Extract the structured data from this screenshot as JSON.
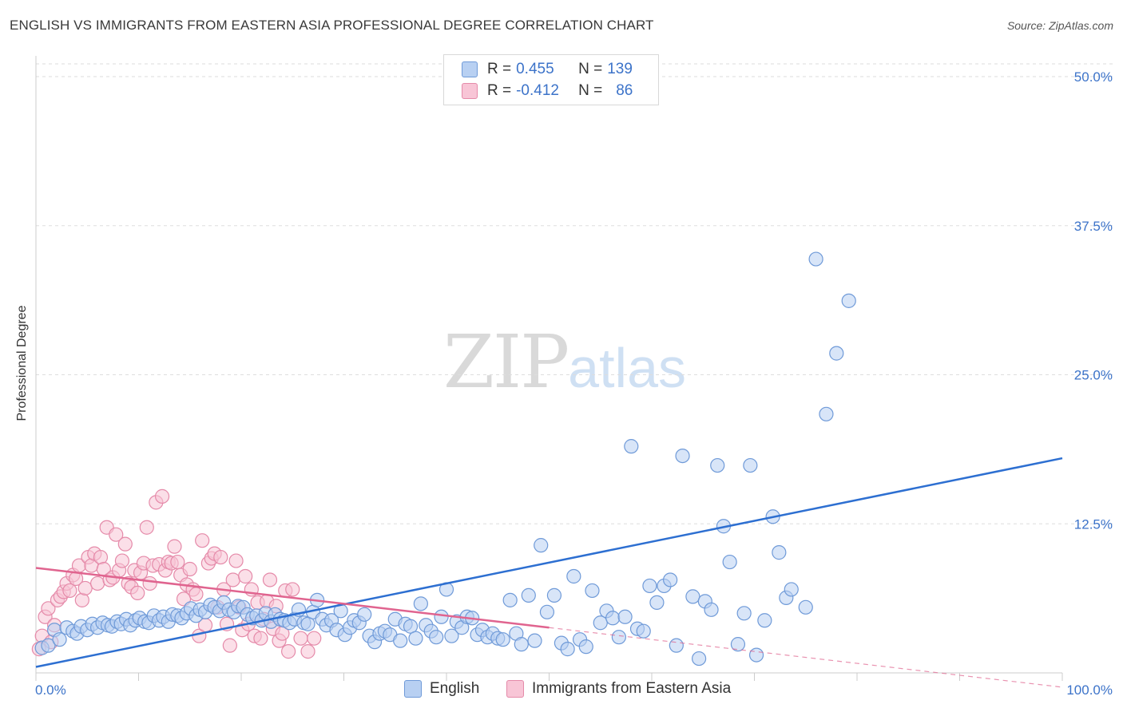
{
  "header": {
    "title": "ENGLISH VS IMMIGRANTS FROM EASTERN ASIA PROFESSIONAL DEGREE CORRELATION CHART",
    "source": "Source: ZipAtlas.com"
  },
  "watermark": {
    "part1": "ZIP",
    "part2": "atlas"
  },
  "legend_top": {
    "rows": [
      {
        "r_label": "R = ",
        "r_value": "0.455",
        "n_label": "N = ",
        "n_value": "139"
      },
      {
        "r_label": "R = ",
        "r_value": "-0.412",
        "n_label": "N = ",
        "n_value": "86"
      }
    ]
  },
  "legend_bottom": {
    "items": [
      {
        "label": "English"
      },
      {
        "label": "Immigrants from Eastern Asia"
      }
    ]
  },
  "colors": {
    "english_fill": "#b8d0f2",
    "english_stroke": "#6f9ad8",
    "english_line": "#2d6fd1",
    "immig_fill": "#f8c5d6",
    "immig_stroke": "#e58aa9",
    "immig_line": "#e0648f",
    "tick_label": "#3c73c9",
    "grid": "#dddddd"
  },
  "chart_data": {
    "type": "scatter",
    "title": "ENGLISH VS IMMIGRANTS FROM EASTERN ASIA PROFESSIONAL DEGREE CORRELATION CHART",
    "xlabel": "",
    "ylabel": "Professional Degree",
    "xlim": [
      0,
      100
    ],
    "ylim": [
      0,
      52
    ],
    "x_tick_labels": [
      {
        "value": 0,
        "label": "0.0%"
      },
      {
        "value": 100,
        "label": "100.0%"
      }
    ],
    "y_tick_labels": [
      {
        "value": 12.5,
        "label": "12.5%"
      },
      {
        "value": 25,
        "label": "25.0%"
      },
      {
        "value": 37.5,
        "label": "37.5%"
      },
      {
        "value": 50,
        "label": "50.0%"
      }
    ],
    "grid": true,
    "legend_position": "top-center",
    "series": [
      {
        "name": "English",
        "R": 0.455,
        "N": 139,
        "trend": {
          "x": [
            0,
            100
          ],
          "y": [
            0.5,
            18.0
          ]
        },
        "points": [
          [
            0.6,
            2.1
          ],
          [
            1.2,
            2.3
          ],
          [
            1.8,
            3.6
          ],
          [
            2.3,
            2.8
          ],
          [
            3.0,
            3.8
          ],
          [
            3.6,
            3.5
          ],
          [
            4.0,
            3.3
          ],
          [
            4.4,
            3.9
          ],
          [
            5.0,
            3.6
          ],
          [
            5.5,
            4.1
          ],
          [
            6.0,
            3.8
          ],
          [
            6.5,
            4.2
          ],
          [
            7.0,
            4.0
          ],
          [
            7.4,
            3.9
          ],
          [
            7.9,
            4.3
          ],
          [
            8.3,
            4.1
          ],
          [
            8.8,
            4.5
          ],
          [
            9.2,
            4.0
          ],
          [
            9.7,
            4.4
          ],
          [
            10.1,
            4.6
          ],
          [
            10.6,
            4.3
          ],
          [
            11.0,
            4.2
          ],
          [
            11.5,
            4.8
          ],
          [
            12.0,
            4.4
          ],
          [
            12.4,
            4.7
          ],
          [
            12.9,
            4.3
          ],
          [
            13.3,
            4.9
          ],
          [
            13.8,
            4.8
          ],
          [
            14.2,
            4.6
          ],
          [
            14.7,
            5.0
          ],
          [
            15.1,
            5.4
          ],
          [
            15.6,
            4.8
          ],
          [
            16.0,
            5.3
          ],
          [
            16.5,
            5.1
          ],
          [
            17.0,
            5.7
          ],
          [
            17.4,
            5.5
          ],
          [
            17.9,
            5.2
          ],
          [
            18.3,
            5.9
          ],
          [
            18.8,
            5.3
          ],
          [
            19.3,
            5.1
          ],
          [
            19.7,
            5.6
          ],
          [
            20.2,
            5.5
          ],
          [
            20.6,
            4.9
          ],
          [
            21.1,
            4.6
          ],
          [
            21.5,
            4.8
          ],
          [
            22.0,
            4.4
          ],
          [
            22.4,
            5.0
          ],
          [
            22.9,
            4.3
          ],
          [
            23.3,
            4.9
          ],
          [
            23.8,
            4.5
          ],
          [
            24.2,
            4.4
          ],
          [
            24.7,
            4.2
          ],
          [
            25.2,
            4.5
          ],
          [
            25.6,
            5.3
          ],
          [
            26.1,
            4.2
          ],
          [
            26.5,
            4.1
          ],
          [
            27.0,
            5.1
          ],
          [
            27.4,
            6.1
          ],
          [
            27.9,
            4.5
          ],
          [
            28.3,
            4.0
          ],
          [
            28.8,
            4.4
          ],
          [
            29.3,
            3.6
          ],
          [
            29.7,
            5.2
          ],
          [
            30.1,
            3.2
          ],
          [
            30.6,
            3.8
          ],
          [
            31.0,
            4.4
          ],
          [
            31.5,
            4.2
          ],
          [
            32.0,
            4.9
          ],
          [
            32.5,
            3.1
          ],
          [
            33.0,
            2.6
          ],
          [
            33.5,
            3.3
          ],
          [
            34.0,
            3.5
          ],
          [
            34.5,
            3.2
          ],
          [
            35.0,
            4.5
          ],
          [
            35.5,
            2.7
          ],
          [
            36.0,
            4.1
          ],
          [
            36.5,
            3.9
          ],
          [
            37.0,
            2.9
          ],
          [
            37.5,
            5.8
          ],
          [
            38.0,
            4.0
          ],
          [
            38.5,
            3.5
          ],
          [
            39.0,
            3.0
          ],
          [
            39.5,
            4.7
          ],
          [
            40.0,
            7.0
          ],
          [
            40.5,
            3.1
          ],
          [
            41.0,
            4.3
          ],
          [
            41.5,
            3.8
          ],
          [
            42.0,
            4.7
          ],
          [
            42.5,
            4.6
          ],
          [
            43.0,
            3.2
          ],
          [
            43.5,
            3.6
          ],
          [
            44.0,
            3.0
          ],
          [
            44.5,
            3.3
          ],
          [
            45.0,
            2.9
          ],
          [
            45.5,
            2.8
          ],
          [
            46.2,
            6.1
          ],
          [
            46.8,
            3.3
          ],
          [
            47.3,
            2.4
          ],
          [
            48.0,
            6.5
          ],
          [
            48.6,
            2.7
          ],
          [
            49.2,
            10.7
          ],
          [
            49.8,
            5.1
          ],
          [
            50.5,
            6.5
          ],
          [
            51.2,
            2.5
          ],
          [
            51.8,
            2.0
          ],
          [
            52.4,
            8.1
          ],
          [
            53.0,
            2.8
          ],
          [
            53.6,
            2.2
          ],
          [
            54.2,
            6.9
          ],
          [
            55.0,
            4.2
          ],
          [
            55.6,
            5.2
          ],
          [
            56.2,
            4.6
          ],
          [
            56.8,
            3.0
          ],
          [
            57.4,
            4.7
          ],
          [
            58.0,
            19.0
          ],
          [
            58.6,
            3.7
          ],
          [
            59.2,
            3.5
          ],
          [
            59.8,
            7.3
          ],
          [
            60.5,
            5.9
          ],
          [
            61.2,
            7.3
          ],
          [
            61.8,
            7.8
          ],
          [
            62.4,
            2.3
          ],
          [
            63.0,
            18.2
          ],
          [
            64.0,
            6.4
          ],
          [
            64.6,
            1.2
          ],
          [
            65.2,
            6.0
          ],
          [
            65.8,
            5.3
          ],
          [
            66.4,
            17.4
          ],
          [
            67.0,
            12.3
          ],
          [
            67.6,
            9.3
          ],
          [
            68.4,
            2.4
          ],
          [
            69.0,
            5.0
          ],
          [
            69.6,
            17.4
          ],
          [
            70.2,
            1.5
          ],
          [
            71.0,
            4.4
          ],
          [
            71.8,
            13.1
          ],
          [
            72.4,
            10.1
          ],
          [
            73.1,
            6.3
          ],
          [
            73.6,
            7.0
          ],
          [
            75.0,
            5.5
          ],
          [
            76.0,
            34.7
          ],
          [
            77.0,
            21.7
          ],
          [
            78.0,
            26.8
          ],
          [
            79.2,
            31.2
          ]
        ]
      },
      {
        "name": "Immigrants from Eastern Asia",
        "R": -0.412,
        "N": 86,
        "trend": {
          "x": [
            0,
            50
          ],
          "y": [
            8.8,
            3.8
          ]
        },
        "trend_dashed": {
          "x": [
            50,
            100
          ],
          "y": [
            3.8,
            -1.2
          ]
        },
        "points": [
          [
            0.3,
            2.0
          ],
          [
            0.6,
            3.1
          ],
          [
            0.9,
            4.7
          ],
          [
            1.2,
            5.4
          ],
          [
            1.5,
            2.6
          ],
          [
            1.8,
            4.0
          ],
          [
            2.1,
            6.1
          ],
          [
            2.4,
            6.4
          ],
          [
            2.7,
            6.8
          ],
          [
            3.0,
            7.5
          ],
          [
            3.3,
            6.9
          ],
          [
            3.6,
            8.2
          ],
          [
            3.9,
            7.9
          ],
          [
            4.2,
            9.0
          ],
          [
            4.5,
            6.1
          ],
          [
            4.8,
            7.1
          ],
          [
            5.1,
            9.7
          ],
          [
            5.4,
            9.0
          ],
          [
            5.7,
            10.0
          ],
          [
            6.0,
            7.5
          ],
          [
            6.3,
            9.7
          ],
          [
            6.6,
            8.7
          ],
          [
            6.9,
            12.2
          ],
          [
            7.2,
            7.8
          ],
          [
            7.5,
            8.0
          ],
          [
            7.8,
            11.6
          ],
          [
            8.1,
            8.6
          ],
          [
            8.4,
            9.4
          ],
          [
            8.7,
            10.8
          ],
          [
            9.0,
            7.5
          ],
          [
            9.3,
            7.2
          ],
          [
            9.6,
            8.6
          ],
          [
            9.9,
            6.7
          ],
          [
            10.2,
            8.4
          ],
          [
            10.5,
            9.2
          ],
          [
            10.8,
            12.2
          ],
          [
            11.1,
            7.5
          ],
          [
            11.4,
            9.0
          ],
          [
            11.7,
            14.3
          ],
          [
            12.0,
            9.1
          ],
          [
            12.3,
            14.8
          ],
          [
            12.6,
            8.6
          ],
          [
            12.9,
            9.3
          ],
          [
            13.2,
            9.2
          ],
          [
            13.5,
            10.6
          ],
          [
            13.8,
            9.3
          ],
          [
            14.1,
            8.2
          ],
          [
            14.4,
            6.2
          ],
          [
            14.7,
            7.4
          ],
          [
            15.0,
            8.7
          ],
          [
            15.3,
            7.0
          ],
          [
            15.6,
            6.6
          ],
          [
            15.9,
            3.1
          ],
          [
            16.2,
            11.1
          ],
          [
            16.5,
            4.0
          ],
          [
            16.8,
            9.2
          ],
          [
            17.1,
            9.6
          ],
          [
            17.4,
            10.0
          ],
          [
            17.7,
            5.5
          ],
          [
            18.0,
            9.7
          ],
          [
            18.3,
            7.0
          ],
          [
            18.6,
            4.1
          ],
          [
            18.9,
            2.3
          ],
          [
            19.2,
            7.8
          ],
          [
            19.5,
            9.4
          ],
          [
            19.8,
            5.5
          ],
          [
            20.1,
            3.6
          ],
          [
            20.4,
            8.1
          ],
          [
            20.7,
            4.1
          ],
          [
            21.0,
            7.0
          ],
          [
            21.3,
            3.1
          ],
          [
            21.6,
            5.9
          ],
          [
            21.9,
            2.9
          ],
          [
            22.2,
            4.5
          ],
          [
            22.5,
            6.0
          ],
          [
            22.8,
            7.8
          ],
          [
            23.1,
            3.7
          ],
          [
            23.4,
            5.6
          ],
          [
            23.7,
            2.7
          ],
          [
            24.0,
            3.3
          ],
          [
            24.3,
            6.9
          ],
          [
            24.6,
            1.8
          ],
          [
            25.0,
            7.0
          ],
          [
            25.8,
            2.9
          ],
          [
            26.5,
            1.8
          ],
          [
            27.1,
            2.9
          ]
        ]
      }
    ]
  }
}
